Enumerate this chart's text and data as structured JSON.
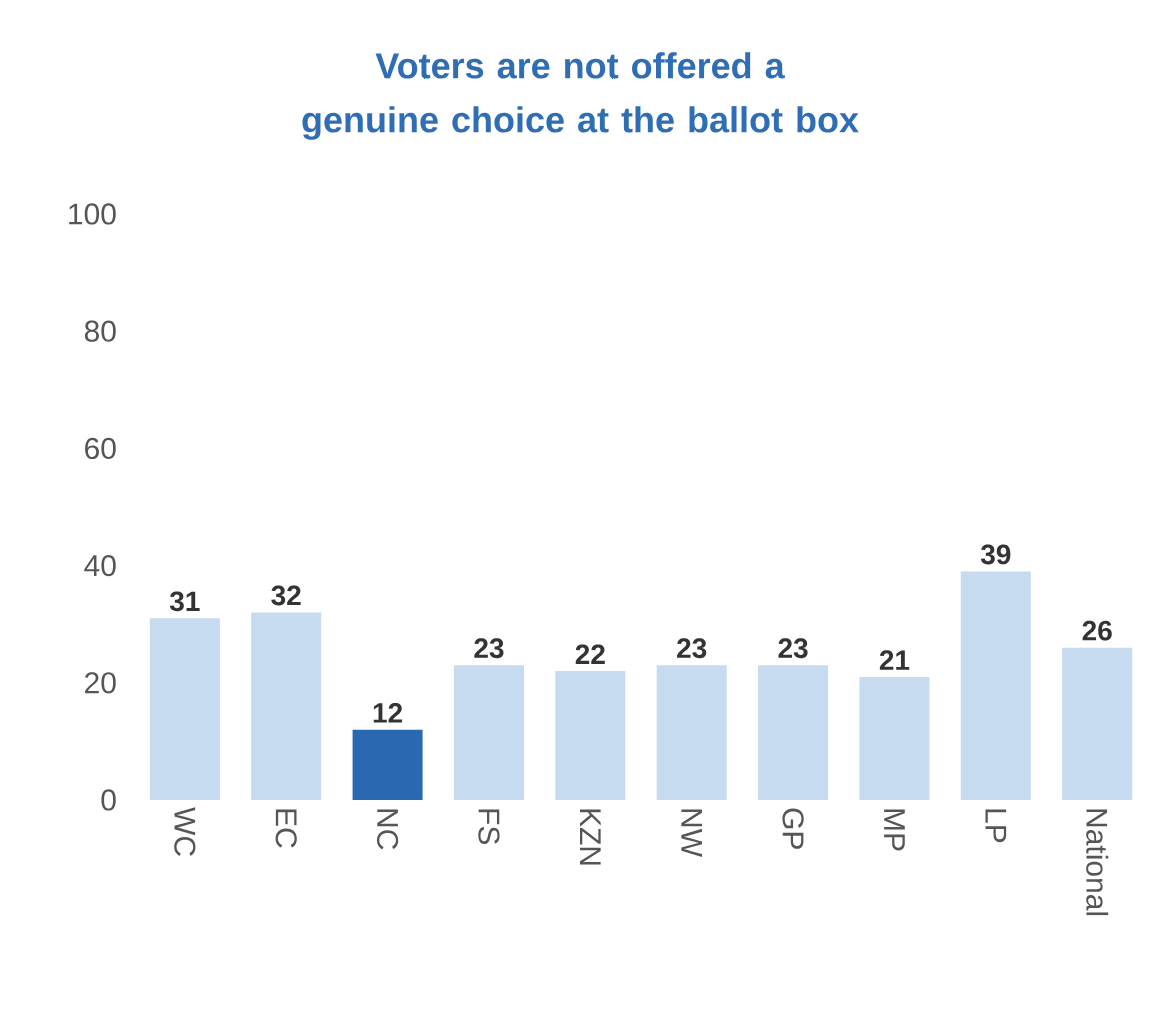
{
  "chart_data": {
    "type": "bar",
    "title": "Voters are not offered a genuine choice at the ballot box",
    "categories": [
      "WC",
      "EC",
      "NC",
      "FS",
      "KZN",
      "NW",
      "GP",
      "MP",
      "LP",
      "National"
    ],
    "values": [
      31,
      32,
      12,
      23,
      22,
      23,
      23,
      21,
      39,
      26
    ],
    "colors": [
      "#c6daf0",
      "#c6daf0",
      "#2a68b2",
      "#c6daf0",
      "#c6daf0",
      "#c6daf0",
      "#c6daf0",
      "#c6daf0",
      "#c6daf0",
      "#c6daf0"
    ],
    "ylim": [
      0,
      100
    ],
    "yticks": [
      0,
      20,
      40,
      60,
      80,
      100
    ],
    "data_labels": true,
    "grid": false
  }
}
